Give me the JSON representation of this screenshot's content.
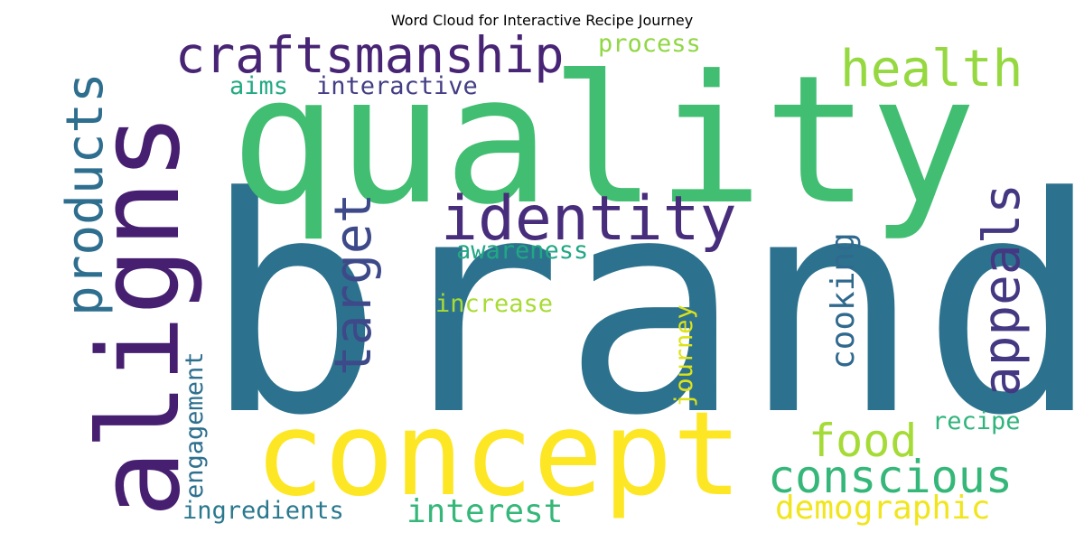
{
  "title": "Word Cloud for Interactive Recipe Journey",
  "words": [
    {
      "text": "brand",
      "color": "#2c728e"
    },
    {
      "text": "quality",
      "color": "#41be71"
    },
    {
      "text": "aligns",
      "color": "#471f70"
    },
    {
      "text": "concept",
      "color": "#fde725"
    },
    {
      "text": "craftsmanship",
      "color": "#482475"
    },
    {
      "text": "identity",
      "color": "#472d7b"
    },
    {
      "text": "health",
      "color": "#95d840"
    },
    {
      "text": "products",
      "color": "#2e6e8e"
    },
    {
      "text": "target",
      "color": "#3e4989"
    },
    {
      "text": "appeals",
      "color": "#453882"
    },
    {
      "text": "food",
      "color": "#a5db36"
    },
    {
      "text": "conscious",
      "color": "#35b779"
    },
    {
      "text": "cooking",
      "color": "#30698e"
    },
    {
      "text": "demographic",
      "color": "#f1e51d"
    },
    {
      "text": "interest",
      "color": "#35b779"
    },
    {
      "text": "ingredients",
      "color": "#2a788e"
    },
    {
      "text": "process",
      "color": "#90d743"
    },
    {
      "text": "interactive",
      "color": "#433e85"
    },
    {
      "text": "aims",
      "color": "#23a983"
    },
    {
      "text": "awareness",
      "color": "#22a785"
    },
    {
      "text": "increase",
      "color": "#a8db34"
    },
    {
      "text": "journey",
      "color": "#dde318"
    },
    {
      "text": "engagement",
      "color": "#2e6f8e"
    },
    {
      "text": "recipe",
      "color": "#2fb47c"
    }
  ]
}
